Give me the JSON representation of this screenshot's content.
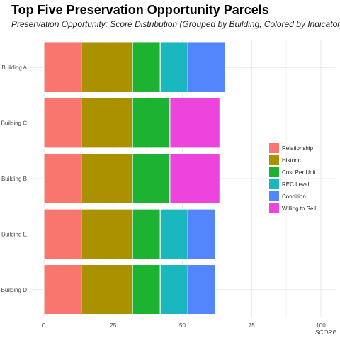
{
  "chart_data": {
    "type": "bar",
    "orientation": "horizontal",
    "stacked": true,
    "title": "Top Five Preservation Opportunity Parcels",
    "subtitle": "Preservation Opportunity: Score Distribution (Grouped by Building, Colored by Indicator)",
    "xlabel": "SCORE",
    "ylabel": "",
    "xlim": [
      0,
      100
    ],
    "x_ticks": [
      0,
      25,
      50,
      75,
      100
    ],
    "grid": true,
    "legend_position": "right",
    "categories": [
      "Building A",
      "Building C",
      "Building B",
      "Building E",
      "Building D"
    ],
    "series": [
      {
        "name": "Relationship",
        "color": "#F8766D",
        "values": [
          13.5,
          13.5,
          13.5,
          13.5,
          13.5
        ]
      },
      {
        "name": "Historic",
        "color": "#AB9100",
        "values": [
          18.5,
          18.5,
          18.5,
          18.5,
          18.5
        ]
      },
      {
        "name": "Cost Per Unit",
        "color": "#1DB232",
        "values": [
          10,
          13.5,
          13.5,
          10,
          10
        ]
      },
      {
        "name": "REC Level",
        "color": "#1AB8BE",
        "values": [
          10,
          0,
          0,
          10,
          10
        ]
      },
      {
        "name": "Condition",
        "color": "#5386FD",
        "values": [
          13.5,
          0,
          0,
          10,
          10
        ]
      },
      {
        "name": "Willing to Sell",
        "color": "#EC44DC",
        "values": [
          0,
          18,
          18,
          0,
          0
        ]
      }
    ]
  }
}
